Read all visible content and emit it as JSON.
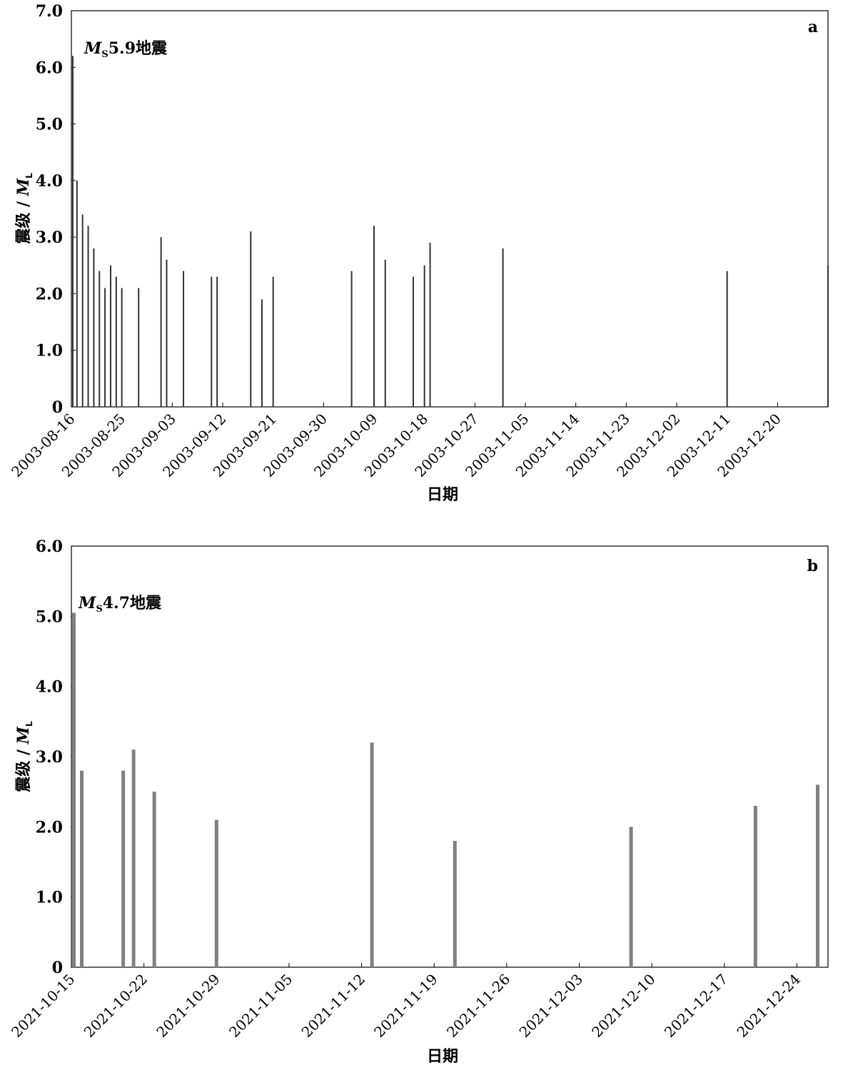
{
  "chart_data": [
    {
      "type": "bar",
      "panel": "a",
      "annotation": {
        "m": "M",
        "sub": "S",
        "rest": "5.9地震"
      },
      "xlabel": "日期",
      "ylabel": {
        "prefix": "震级 / ",
        "m": "M",
        "sub": "L"
      },
      "ylim": [
        0,
        7
      ],
      "yticks": [
        0,
        1.0,
        2.0,
        3.0,
        4.0,
        5.0,
        6.0,
        7.0
      ],
      "ytick_labels": [
        "0",
        "1.0",
        "2.0",
        "3.0",
        "4.0",
        "5.0",
        "6.0",
        "7.0"
      ],
      "xlim": [
        "2003-08-16",
        "2003-12-29"
      ],
      "xtick_labels": [
        "2003-08-16",
        "2003-08-25",
        "2003-09-03",
        "2003-09-12",
        "2003-09-21",
        "2003-09-30",
        "2003-10-09",
        "2003-10-18",
        "2003-10-27",
        "2003-11-05",
        "2003-11-14",
        "2003-11-23",
        "2003-12-02",
        "2003-12-11",
        "2003-12-20"
      ],
      "bar_color": "#333333",
      "x": [
        "2003-08-16",
        "2003-08-17",
        "2003-08-18",
        "2003-08-19",
        "2003-08-20",
        "2003-08-21",
        "2003-08-22",
        "2003-08-23",
        "2003-08-24",
        "2003-08-25",
        "2003-08-28",
        "2003-09-01",
        "2003-09-02",
        "2003-09-05",
        "2003-09-10",
        "2003-09-11",
        "2003-09-17",
        "2003-09-19",
        "2003-09-21",
        "2003-10-05",
        "2003-10-09",
        "2003-10-11",
        "2003-10-16",
        "2003-10-18",
        "2003-10-19",
        "2003-11-01",
        "2003-12-11",
        "2003-12-29"
      ],
      "values": [
        6.2,
        4.0,
        3.4,
        3.2,
        2.8,
        2.4,
        2.1,
        2.5,
        2.3,
        2.1,
        2.1,
        3.0,
        2.6,
        2.4,
        2.3,
        2.3,
        3.1,
        1.9,
        2.3,
        2.4,
        3.2,
        2.6,
        2.3,
        2.5,
        2.9,
        2.8,
        2.4,
        2.5
      ]
    },
    {
      "type": "bar",
      "panel": "b",
      "annotation": {
        "m": "M",
        "sub": "S",
        "rest": "4.7地震"
      },
      "xlabel": "日期",
      "ylabel": {
        "prefix": "震级 / ",
        "m": "M",
        "sub": "L"
      },
      "ylim": [
        0,
        6
      ],
      "yticks": [
        0,
        1.0,
        2.0,
        3.0,
        4.0,
        5.0,
        6.0
      ],
      "ytick_labels": [
        "0",
        "1.0",
        "2.0",
        "3.0",
        "4.0",
        "5.0",
        "6.0"
      ],
      "xlim": [
        "2021-10-15",
        "2021-12-27"
      ],
      "xtick_labels": [
        "2021-10-15",
        "2021-10-22",
        "2021-10-29",
        "2021-11-05",
        "2021-11-12",
        "2021-11-19",
        "2021-11-26",
        "2021-12-03",
        "2021-12-10",
        "2021-12-17",
        "2021-12-24"
      ],
      "bar_color": "#808080",
      "x": [
        "2021-10-15",
        "2021-10-16",
        "2021-10-20",
        "2021-10-21",
        "2021-10-23",
        "2021-10-29",
        "2021-11-13",
        "2021-11-21",
        "2021-12-08",
        "2021-12-20",
        "2021-12-26"
      ],
      "values": [
        5.05,
        2.8,
        2.8,
        3.1,
        2.5,
        2.1,
        3.2,
        1.8,
        2.0,
        2.3,
        2.6
      ]
    }
  ]
}
